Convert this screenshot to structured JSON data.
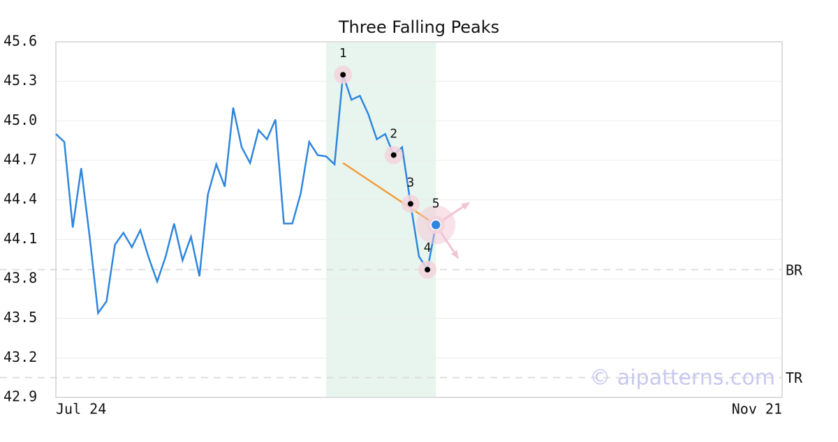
{
  "chart_data": {
    "type": "line",
    "title": "Three Falling Peaks",
    "categories": [
      "Jul 24",
      null,
      null,
      null,
      null,
      null,
      null,
      null,
      null,
      null,
      null,
      null,
      null,
      null,
      null,
      null,
      null,
      null,
      null,
      null,
      null,
      null,
      null,
      null,
      null,
      null,
      null,
      null,
      null,
      null,
      null,
      null,
      null,
      null,
      null,
      null,
      null,
      null,
      null,
      null,
      null,
      null,
      null,
      null,
      null,
      null,
      null,
      null,
      null,
      null,
      null,
      null,
      null,
      null,
      null,
      null,
      null,
      null,
      null,
      null,
      null,
      null,
      null,
      null,
      null,
      null,
      null,
      null,
      null,
      null,
      null,
      null,
      null,
      null,
      null,
      null,
      null,
      null,
      null,
      null,
      null,
      null,
      null,
      null,
      null,
      null,
      "Nov 21"
    ],
    "values": [
      44.9,
      44.84,
      44.19,
      44.64,
      44.12,
      43.54,
      43.63,
      44.06,
      44.15,
      44.04,
      44.17,
      43.96,
      43.78,
      43.97,
      44.22,
      43.94,
      44.12,
      43.82,
      44.44,
      44.67,
      44.5,
      45.1,
      44.8,
      44.68,
      44.93,
      44.86,
      45.01,
      44.22,
      44.22,
      44.45,
      44.84,
      44.74,
      44.73,
      44.67,
      45.35,
      45.16,
      45.19,
      45.05,
      44.86,
      44.9,
      44.74,
      44.8,
      44.37,
      43.97,
      43.87,
      44.21,
      null,
      null,
      null,
      null,
      null,
      null,
      null,
      null,
      null,
      null,
      null,
      null,
      null,
      null,
      null,
      null,
      null,
      null,
      null,
      null,
      null,
      null,
      null,
      null,
      null,
      null,
      null,
      null,
      null,
      null,
      null,
      null,
      null,
      null,
      null,
      null,
      null,
      null,
      null,
      null,
      null
    ],
    "color": "#2e86de",
    "ylim": [
      42.9,
      45.6
    ],
    "yticks": [
      42.9,
      43.2,
      43.5,
      43.8,
      44.1,
      44.4,
      44.7,
      {
        "value": 45,
        "label": "45.0"
      },
      45.3,
      45.6
    ],
    "grid": true,
    "highlight": {
      "from": 32,
      "to": 45,
      "color": "#e8f5ef"
    },
    "pattern_points": [
      {
        "label": "1",
        "category": 34
      },
      {
        "label": "2",
        "category": 40
      },
      {
        "label": "3",
        "category": 42
      },
      {
        "label": "4",
        "category": 44
      },
      {
        "label": "5",
        "category": 45
      }
    ],
    "trendline": {
      "from": [
        34,
        44.68
      ],
      "to": [
        45,
        44.21
      ],
      "color": "#f39c3c"
    },
    "levels": [
      {
        "label": "BR",
        "value": 43.87
      },
      {
        "label": "TR",
        "value": 43.05
      }
    ],
    "watermark": "© aipatterns.com"
  }
}
